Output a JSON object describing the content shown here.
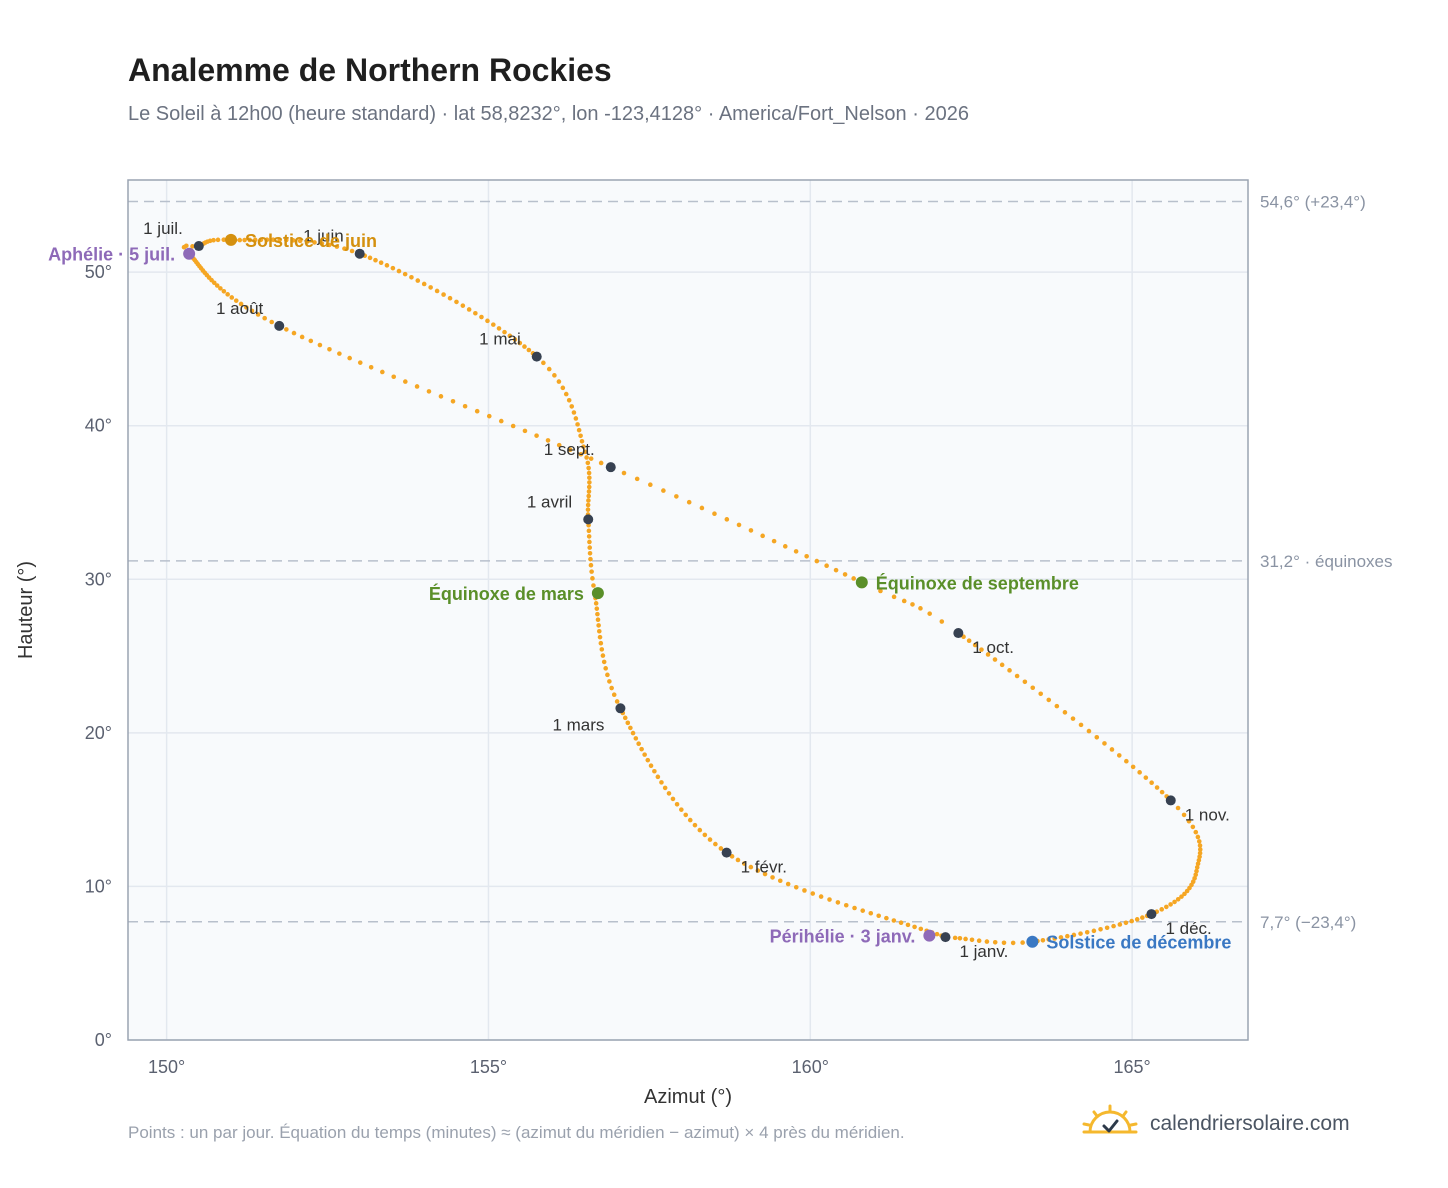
{
  "title": "Analemme de Northern Rockies",
  "subtitle": "Le Soleil à 12h00 (heure standard) · lat 58,8232°, lon -123,4128° · America/Fort_Nelson · 2026",
  "footnote": "Points : un par jour. Équation du temps (minutes) ≈ (azimut du méridien − azimut) × 4 près du méridien.",
  "brand": {
    "name": "calendriersolaire.com",
    "icon": "sun-check-icon"
  },
  "colors": {
    "curve": "#f5a623",
    "month_marker": "#374151",
    "equinox": "#5a8f29",
    "june_solstice": "#d4900f",
    "december_solstice": "#3a78c3",
    "apsis": "#8e6ab8",
    "reference_line": "#b8c0cc",
    "plot_background": "#f8fafc"
  },
  "chart_data": {
    "type": "scatter",
    "xlabel": "Azimut (°)",
    "ylabel": "Hauteur (°)",
    "xlim": [
      149.4,
      166.8
    ],
    "ylim": [
      0,
      56
    ],
    "xticks": [
      150,
      155,
      160,
      165
    ],
    "xtick_labels": [
      "150°",
      "155°",
      "160°",
      "165°"
    ],
    "yticks": [
      0,
      10,
      20,
      30,
      40,
      50
    ],
    "ytick_labels": [
      "0°",
      "10°",
      "20°",
      "30°",
      "40°",
      "50°"
    ],
    "grid": true,
    "reference_lines": [
      {
        "y": 54.6,
        "label": "54,6° (+23,4°)"
      },
      {
        "y": 31.2,
        "label": "31,2° · équinoxes"
      },
      {
        "y": 7.7,
        "label": "7,7° (−23,4°)"
      }
    ],
    "analemma_days": [
      {
        "day": 1,
        "az": 162.1,
        "alt": 6.7
      },
      {
        "day": 32,
        "az": 158.7,
        "alt": 12.2
      },
      {
        "day": 60,
        "az": 157.05,
        "alt": 21.6
      },
      {
        "day": 79,
        "az": 156.65,
        "alt": 29.1
      },
      {
        "day": 91,
        "az": 156.55,
        "alt": 33.9
      },
      {
        "day": 105,
        "az": 156.5,
        "alt": 38.3
      },
      {
        "day": 121,
        "az": 155.75,
        "alt": 44.5
      },
      {
        "day": 152,
        "az": 153.0,
        "alt": 51.2
      },
      {
        "day": 172,
        "az": 151.0,
        "alt": 52.1
      },
      {
        "day": 182,
        "az": 150.5,
        "alt": 51.7
      },
      {
        "day": 186,
        "az": 150.35,
        "alt": 51.2
      },
      {
        "day": 213,
        "az": 151.75,
        "alt": 46.5
      },
      {
        "day": 244,
        "az": 156.9,
        "alt": 37.3
      },
      {
        "day": 266,
        "az": 160.8,
        "alt": 29.8
      },
      {
        "day": 274,
        "az": 162.3,
        "alt": 26.5
      },
      {
        "day": 305,
        "az": 165.6,
        "alt": 15.6
      },
      {
        "day": 320,
        "az": 166.0,
        "alt": 11.0
      },
      {
        "day": 335,
        "az": 165.3,
        "alt": 8.2
      },
      {
        "day": 355,
        "az": 163.45,
        "alt": 6.4
      },
      {
        "day": 365,
        "az": 162.25,
        "alt": 6.65
      }
    ],
    "month_markers": [
      {
        "label": "1 janv.",
        "az": 162.1,
        "alt": 6.7,
        "pos": "below-right"
      },
      {
        "label": "1 févr.",
        "az": 158.7,
        "alt": 12.2,
        "pos": "below-right"
      },
      {
        "label": "1 mars",
        "az": 157.05,
        "alt": 21.6,
        "pos": "below-left"
      },
      {
        "label": "1 avril",
        "az": 156.55,
        "alt": 33.9,
        "pos": "above-left"
      },
      {
        "label": "1 mai",
        "az": 155.75,
        "alt": 44.5,
        "pos": "above-left"
      },
      {
        "label": "1 juin",
        "az": 153.0,
        "alt": 51.2,
        "pos": "above-left"
      },
      {
        "label": "1 juil.",
        "az": 150.5,
        "alt": 51.7,
        "pos": "above-left"
      },
      {
        "label": "1 août",
        "az": 151.75,
        "alt": 46.5,
        "pos": "above-left"
      },
      {
        "label": "1 sept.",
        "az": 156.9,
        "alt": 37.3,
        "pos": "above-left"
      },
      {
        "label": "1 oct.",
        "az": 162.3,
        "alt": 26.5,
        "pos": "below-right"
      },
      {
        "label": "1 nov.",
        "az": 165.6,
        "alt": 15.6,
        "pos": "below-right"
      },
      {
        "label": "1 déc.",
        "az": 165.3,
        "alt": 8.2,
        "pos": "below-right"
      }
    ],
    "events": [
      {
        "label": "Solstice de juin",
        "az": 151.0,
        "alt": 52.1,
        "color": "#d4900f",
        "pos": "right"
      },
      {
        "label": "Aphélie · 5 juil.",
        "az": 150.35,
        "alt": 51.2,
        "color": "#8e6ab8",
        "pos": "left"
      },
      {
        "label": "Équinoxe de mars",
        "az": 156.7,
        "alt": 29.1,
        "color": "#5a8f29",
        "pos": "left"
      },
      {
        "label": "Équinoxe de septembre",
        "az": 160.8,
        "alt": 29.8,
        "color": "#5a8f29",
        "pos": "right"
      },
      {
        "label": "Périhélie · 3 janv.",
        "az": 161.85,
        "alt": 6.8,
        "color": "#8e6ab8",
        "pos": "left"
      },
      {
        "label": "Solstice de décembre",
        "az": 163.45,
        "alt": 6.4,
        "color": "#3a78c3",
        "pos": "right"
      }
    ]
  }
}
